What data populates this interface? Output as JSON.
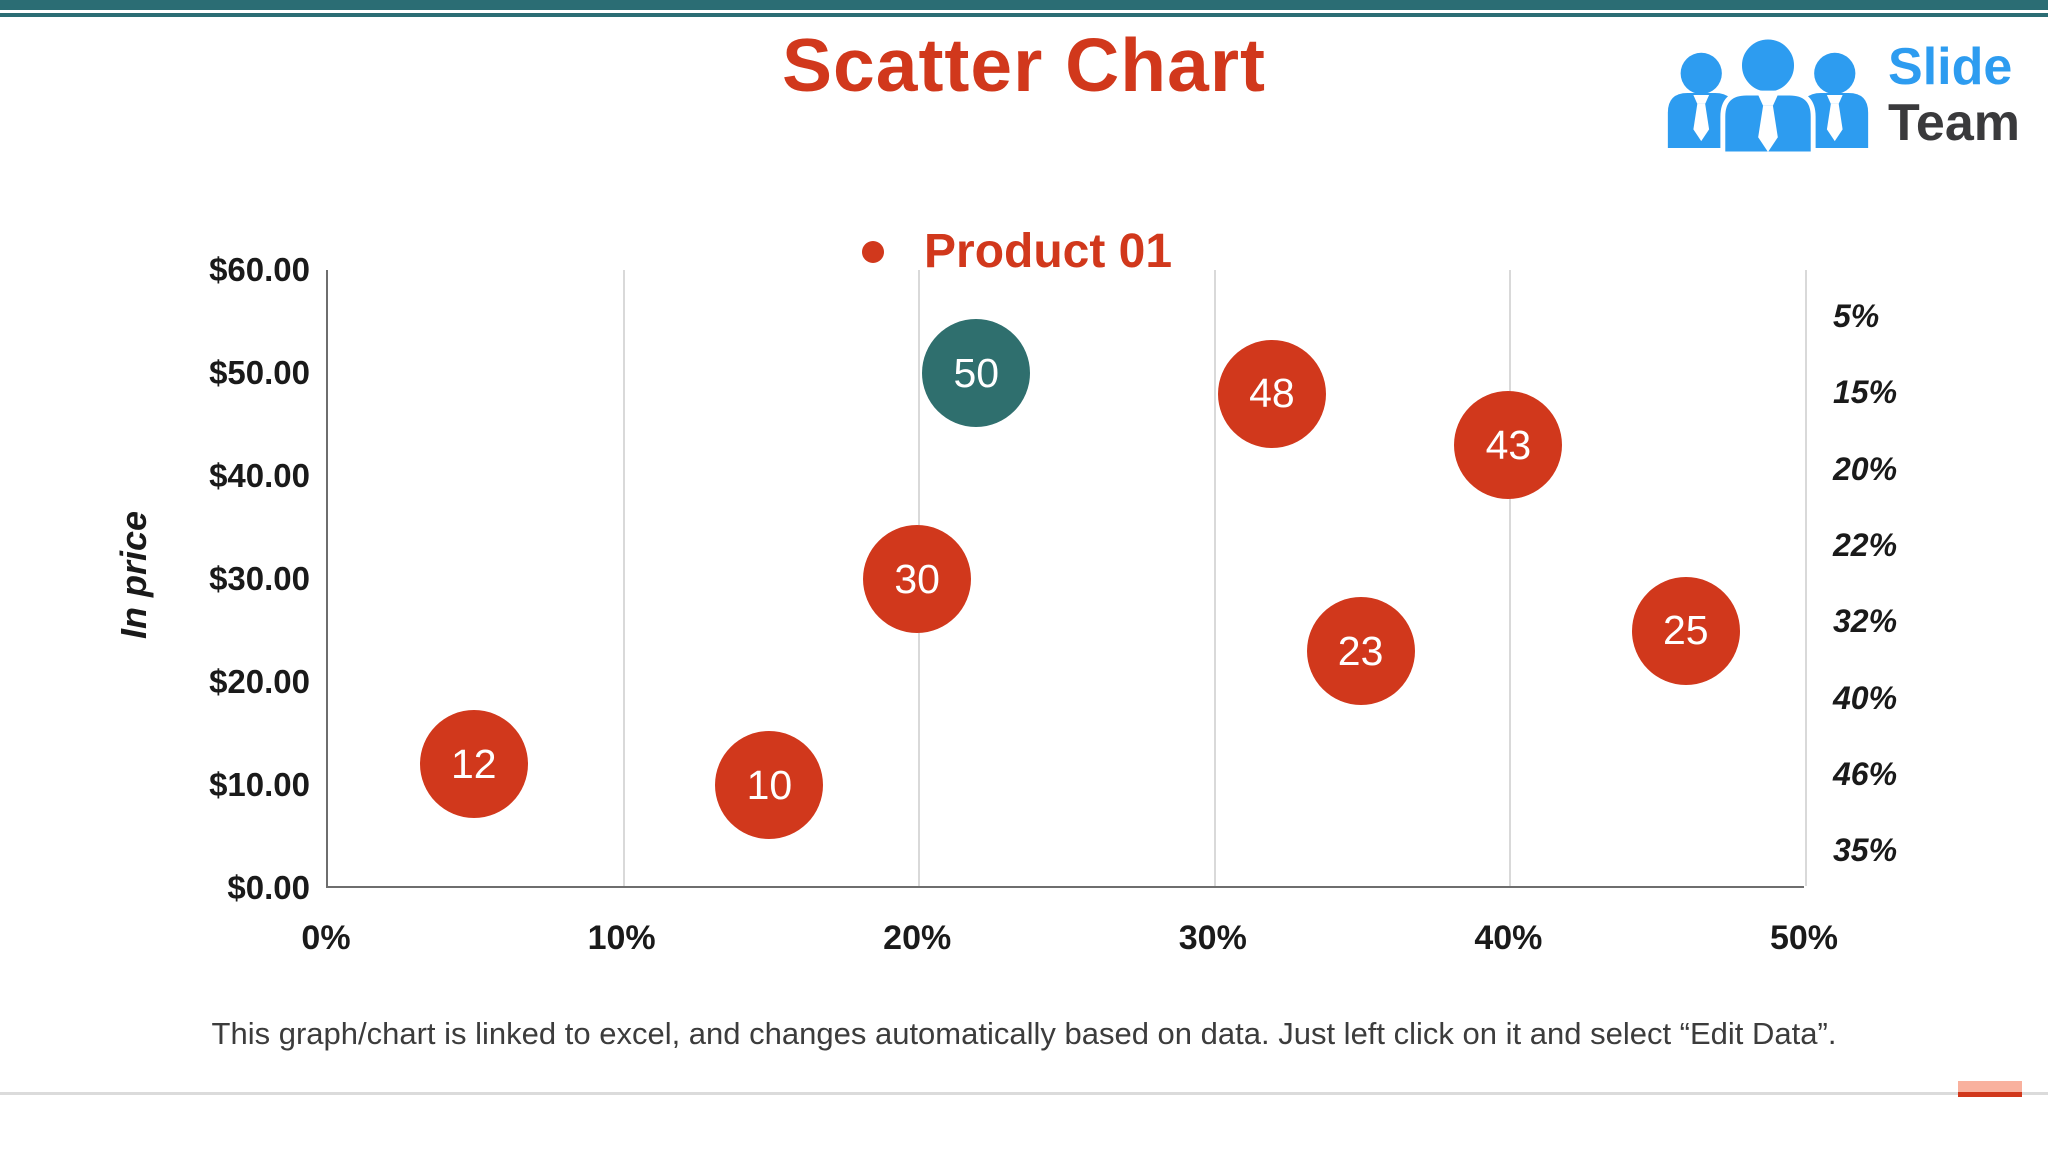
{
  "header": {
    "title": "Scatter Chart"
  },
  "logo": {
    "line1": "Slide",
    "line2": "Team",
    "icon": "people-group-icon"
  },
  "footer": {
    "caption": "This graph/chart is linked to excel, and changes automatically based on data. Just left click on it and select “Edit Data”."
  },
  "colors": {
    "accent_red": "#D1381C",
    "teal_bar": "#2B6D74",
    "teal_bubble": "#2F6F6E",
    "gridline": "#D9D9D9",
    "axis_line": "#6E6E6E",
    "text_dark": "#1A1A1A",
    "caption_text": "#3C3C3C",
    "logo_blue": "#2D9CF0",
    "logo_dark": "#3A3A3C",
    "footer_salmon": "#F9B19E",
    "footer_line": "#DBDBDB",
    "bubble_text": "#FFFFFF"
  },
  "chart_data": {
    "type": "scatter",
    "title": "Scatter Chart",
    "xlabel": "",
    "ylabel": "In price",
    "xlim": [
      0,
      50
    ],
    "ylim": [
      0,
      60
    ],
    "grid": "vertical-only",
    "legend_position": "top-center",
    "xticks": [
      "0%",
      "10%",
      "20%",
      "30%",
      "40%",
      "50%"
    ],
    "yticks": [
      "$60.00",
      "$50.00",
      "$40.00",
      "$30.00",
      "$20.00",
      "$10.00",
      "$0.00"
    ],
    "right_axis_labels": [
      "5%",
      "15%",
      "20%",
      "22%",
      "32%",
      "40%",
      "46%",
      "35%"
    ],
    "series": [
      {
        "name": "Product 01",
        "color": "#D1381C",
        "points": [
          {
            "x": 5,
            "y": 12,
            "label": "12",
            "color": "#D1381C"
          },
          {
            "x": 15,
            "y": 10,
            "label": "10",
            "color": "#D1381C"
          },
          {
            "x": 20,
            "y": 30,
            "label": "30",
            "color": "#D1381C"
          },
          {
            "x": 22,
            "y": 50,
            "label": "50",
            "color": "#2F6F6E"
          },
          {
            "x": 32,
            "y": 48,
            "label": "48",
            "color": "#D1381C"
          },
          {
            "x": 35,
            "y": 23,
            "label": "23",
            "color": "#D1381C"
          },
          {
            "x": 40,
            "y": 43,
            "label": "43",
            "color": "#D1381C"
          },
          {
            "x": 46,
            "y": 25,
            "label": "25",
            "color": "#D1381C"
          }
        ]
      }
    ]
  }
}
